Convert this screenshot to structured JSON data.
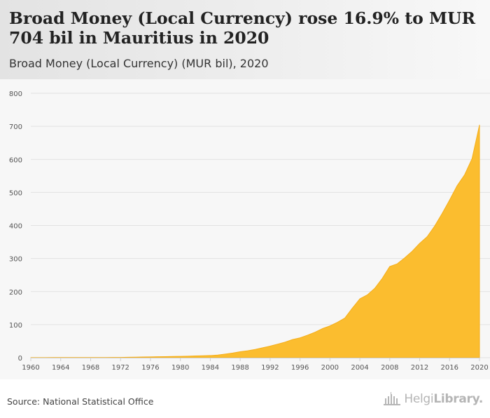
{
  "header": {
    "title": "Broad Money (Local Currency) rose 16.9% to MUR 704 bil in Mauritius in 2020",
    "subtitle": "Broad Money (Local Currency) (MUR bil), 2020"
  },
  "footer": {
    "source": "Source: National Statistical Office",
    "logo_part1": "Helgi",
    "logo_part2": "Library."
  },
  "colors": {
    "area_fill": "#fbbd2f",
    "area_stroke": "#f5ae1a",
    "grid": "#e2e2e2",
    "axis_text": "#555555"
  },
  "chart_data": {
    "type": "area",
    "title": "Broad Money (Local Currency) rose 16.9% to MUR 704 bil in Mauritius in 2020",
    "subtitle": "Broad Money (Local Currency) (MUR bil), 2020",
    "xlabel": "",
    "ylabel": "",
    "ylim": [
      0,
      800
    ],
    "xlim": [
      1960,
      2020
    ],
    "grid": true,
    "legend": "none",
    "y_ticks": [
      0,
      100,
      200,
      300,
      400,
      500,
      600,
      700,
      800
    ],
    "x_ticks": [
      1960,
      1964,
      1968,
      1972,
      1976,
      1980,
      1984,
      1988,
      1992,
      1996,
      2000,
      2004,
      2008,
      2012,
      2016,
      2020
    ],
    "series": [
      {
        "x": [
          1960,
          1961,
          1962,
          1963,
          1964,
          1965,
          1966,
          1967,
          1968,
          1969,
          1970,
          1971,
          1972,
          1973,
          1974,
          1975,
          1976,
          1977,
          1978,
          1979,
          1980,
          1981,
          1982,
          1983,
          1984,
          1985,
          1986,
          1987,
          1988,
          1989,
          1990,
          1991,
          1992,
          1993,
          1994,
          1995,
          1996,
          1997,
          1998,
          1999,
          2000,
          2001,
          2002,
          2003,
          2004,
          2005,
          2006,
          2007,
          2008,
          2009,
          2010,
          2011,
          2012,
          2013,
          2014,
          2015,
          2016,
          2017,
          2018,
          2019,
          2020
        ],
        "values": [
          0.3,
          0.3,
          0.3,
          0.4,
          0.4,
          0.4,
          0.5,
          0.5,
          0.5,
          0.6,
          0.6,
          0.7,
          0.9,
          1.2,
          1.6,
          2.2,
          2.5,
          2.8,
          3.2,
          3.6,
          4.0,
          4.6,
          5.2,
          5.8,
          6.5,
          8,
          11,
          14,
          18,
          21,
          25,
          30,
          35,
          41,
          47,
          55,
          60,
          68,
          77,
          88,
          96,
          107,
          120,
          150,
          178,
          190,
          210,
          240,
          276,
          284,
          302,
          322,
          346,
          366,
          398,
          436,
          477,
          520,
          553,
          602,
          704
        ]
      }
    ]
  }
}
